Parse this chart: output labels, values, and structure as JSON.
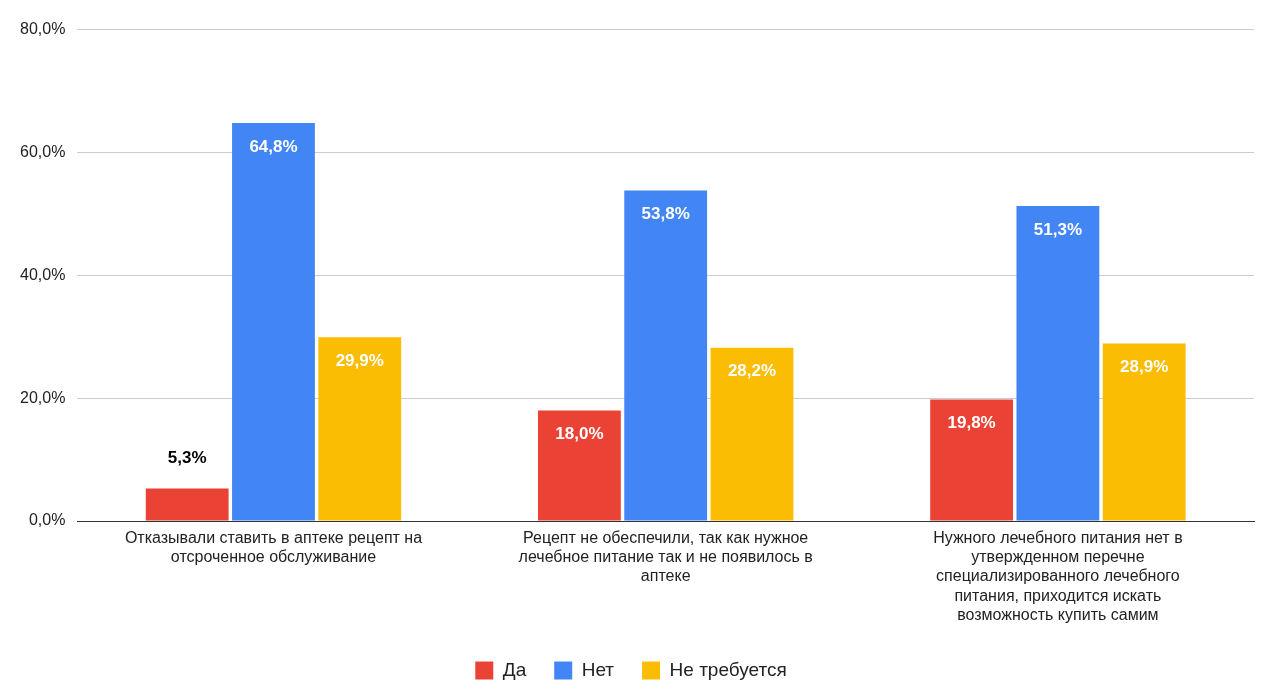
{
  "chart_data": {
    "type": "bar",
    "categories": [
      "Отказывали ставить в аптеке рецепт на отсроченное обслуживание",
      "Рецепт не обеспечили, так как нужное лечебное питание так и не появилось в аптеке",
      "Нужного лечебного питания нет в утвержденном перечне специализированного лечебного питания, приходится искать возможность купить самим"
    ],
    "series": [
      {
        "name": "Да",
        "color": "#ea4335",
        "values": [
          5.3,
          18.0,
          19.8
        ],
        "value_labels": [
          "5,3%",
          "18,0%",
          "19,8%"
        ]
      },
      {
        "name": "Нет",
        "color": "#4285f4",
        "values": [
          64.8,
          53.8,
          51.3
        ],
        "value_labels": [
          "64,8%",
          "53,8%",
          "51,3%"
        ]
      },
      {
        "name": "Не требуется",
        "color": "#fbbc04",
        "values": [
          29.9,
          28.2,
          28.9
        ],
        "value_labels": [
          "29,9%",
          "28,2%",
          "28,9%"
        ]
      }
    ],
    "ylim": [
      0,
      80
    ],
    "yticks": [
      {
        "value": 0,
        "label": "0,0%"
      },
      {
        "value": 20,
        "label": "20,0%"
      },
      {
        "value": 40,
        "label": "40,0%"
      },
      {
        "value": 60,
        "label": "60,0%"
      },
      {
        "value": 80,
        "label": "80,0%"
      }
    ],
    "grid": "y",
    "legend": "bottom"
  }
}
